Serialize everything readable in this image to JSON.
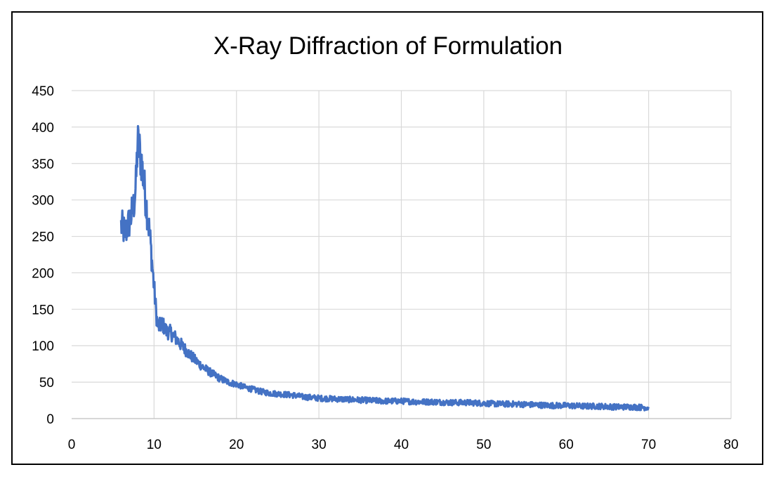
{
  "chart_data": {
    "type": "line",
    "title": "X-Ray Diffraction of Formulation",
    "xlabel": "",
    "ylabel": "",
    "xlim": [
      0,
      80
    ],
    "ylim": [
      0,
      450
    ],
    "x_ticks": [
      "0",
      "10",
      "20",
      "30",
      "40",
      "50",
      "60",
      "70",
      "80"
    ],
    "y_ticks": [
      "0",
      "50",
      "100",
      "150",
      "200",
      "250",
      "300",
      "350",
      "400",
      "450"
    ],
    "grid": true,
    "legend": "none",
    "color": "#4472C4",
    "series": [
      {
        "x": [
          6,
          6.5,
          7,
          7.5,
          7.8,
          8,
          8.2,
          8.5,
          9,
          9.5,
          10,
          10.3,
          10.5,
          11,
          11.5,
          12,
          12.5,
          13,
          14,
          15,
          16,
          17,
          18,
          19,
          20,
          21,
          22,
          23,
          24,
          25,
          26,
          27,
          28,
          29,
          30,
          32,
          34,
          36,
          38,
          40,
          42,
          44,
          46,
          48,
          50,
          52,
          54,
          56,
          58,
          60,
          62,
          64,
          66,
          68,
          70
        ],
        "y": [
          265,
          255,
          270,
          290,
          320,
          378,
          370,
          350,
          300,
          250,
          180,
          140,
          125,
          130,
          120,
          118,
          112,
          105,
          92,
          80,
          70,
          62,
          55,
          50,
          47,
          43,
          40,
          37,
          35,
          34,
          33,
          32,
          30,
          29,
          28,
          27,
          26,
          25,
          24,
          24,
          23,
          23,
          22,
          22,
          21,
          20,
          20,
          19,
          18,
          18,
          17,
          17,
          16,
          16,
          15
        ]
      }
    ]
  }
}
